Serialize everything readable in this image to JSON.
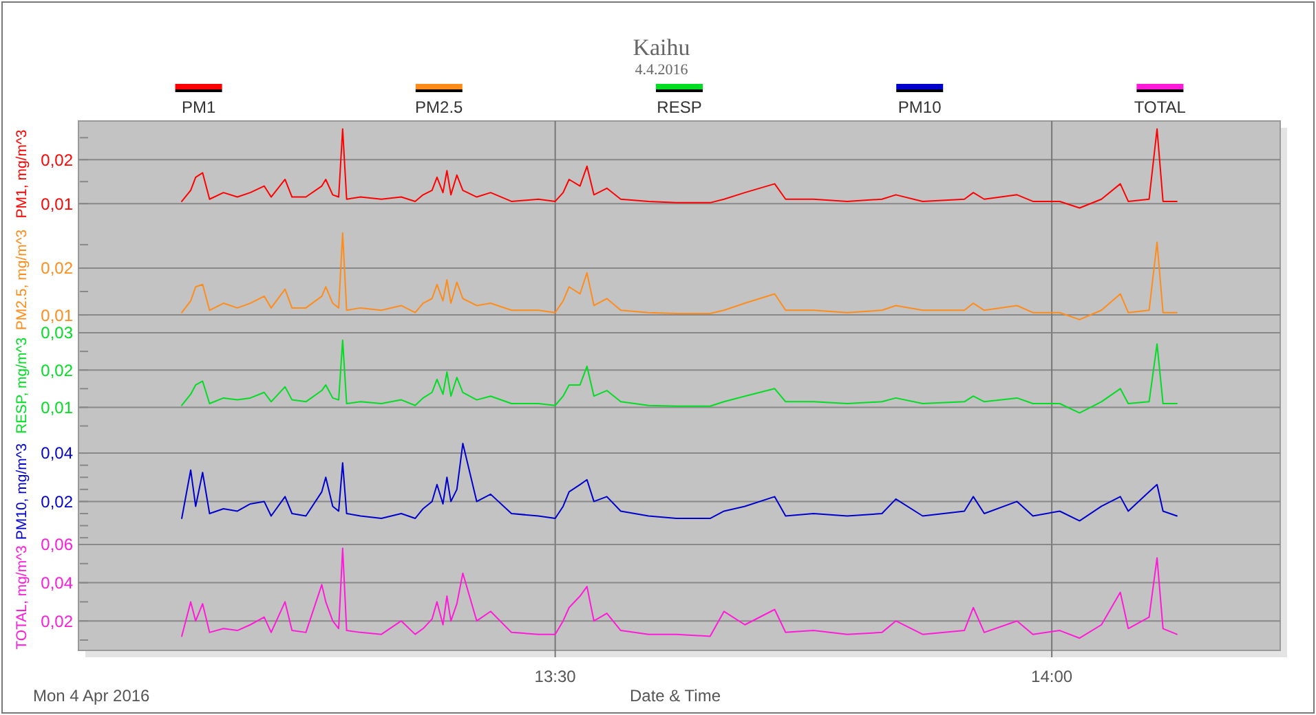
{
  "chart_data": [
    {
      "type": "line",
      "title": "Kaihu",
      "subtitle": "4.4.2016",
      "ylabel": "PM1, mg/m^3",
      "legend": "top",
      "grid": true,
      "tick_labels": "y",
      "xlim": [
        13.02,
        14.23
      ],
      "ylim": [
        0.0047,
        0.0288
      ],
      "yticks": [
        {
          "value": 0.01,
          "label": "0,01"
        },
        {
          "value": 0.015,
          "label": null
        },
        {
          "value": 0.02,
          "label": "0,02"
        },
        {
          "value": 0.025,
          "label": null
        }
      ],
      "series": [
        {
          "name": "PM1",
          "color": "#ff0000",
          "x": [
            13.124,
            13.133,
            13.138,
            13.145,
            13.152,
            13.166,
            13.18,
            13.193,
            13.207,
            13.214,
            13.228,
            13.235,
            13.249,
            13.265,
            13.269,
            13.276,
            13.282,
            13.286,
            13.29,
            13.304,
            13.325,
            13.345,
            13.359,
            13.367,
            13.376,
            13.381,
            13.387,
            13.391,
            13.395,
            13.401,
            13.407,
            13.421,
            13.435,
            13.456,
            13.483,
            13.5,
            13.508,
            13.514,
            13.525,
            13.532,
            13.539,
            13.552,
            13.566,
            13.594,
            13.622,
            13.656,
            13.67,
            13.691,
            13.721,
            13.732,
            13.76,
            13.794,
            13.829,
            13.843,
            13.87,
            13.912,
            13.921,
            13.932,
            13.965,
            13.981,
            14.008,
            14.028,
            14.05,
            14.069,
            14.077,
            14.098,
            14.106,
            14.112,
            14.126
          ],
          "values": [
            0.0105,
            0.013,
            0.016,
            0.017,
            0.011,
            0.0125,
            0.0115,
            0.0125,
            0.014,
            0.0115,
            0.0155,
            0.0115,
            0.0115,
            0.014,
            0.0155,
            0.012,
            0.0115,
            0.027,
            0.011,
            0.0115,
            0.011,
            0.0115,
            0.0105,
            0.012,
            0.013,
            0.016,
            0.0125,
            0.0175,
            0.012,
            0.0165,
            0.013,
            0.0115,
            0.0125,
            0.0105,
            0.011,
            0.0105,
            0.0125,
            0.0155,
            0.014,
            0.0185,
            0.012,
            0.0135,
            0.011,
            0.0105,
            0.0102,
            0.0102,
            0.011,
            0.0125,
            0.0145,
            0.011,
            0.011,
            0.0105,
            0.011,
            0.012,
            0.0105,
            0.011,
            0.0125,
            0.011,
            0.012,
            0.0105,
            0.0105,
            0.009,
            0.011,
            0.0145,
            0.0105,
            0.011,
            0.027,
            0.0105,
            0.0105
          ]
        }
      ]
    },
    {
      "type": "line",
      "ylabel": "PM2.5, mg/m^3",
      "legend": "top",
      "grid": true,
      "tick_labels": "y",
      "xlim": [
        13.02,
        14.23
      ],
      "ylim": [
        0.0062,
        0.0288
      ],
      "yticks": [
        {
          "value": 0.01,
          "label": "0,01"
        },
        {
          "value": 0.015,
          "label": null
        },
        {
          "value": 0.02,
          "label": "0,02"
        },
        {
          "value": 0.025,
          "label": null
        }
      ],
      "series": [
        {
          "name": "PM2.5",
          "color": "#ff8c1a",
          "x": [
            13.124,
            13.133,
            13.138,
            13.145,
            13.152,
            13.166,
            13.18,
            13.193,
            13.207,
            13.214,
            13.228,
            13.235,
            13.249,
            13.265,
            13.269,
            13.276,
            13.282,
            13.286,
            13.29,
            13.304,
            13.325,
            13.345,
            13.359,
            13.367,
            13.376,
            13.381,
            13.387,
            13.391,
            13.395,
            13.401,
            13.407,
            13.421,
            13.435,
            13.456,
            13.483,
            13.5,
            13.508,
            13.514,
            13.525,
            13.532,
            13.539,
            13.552,
            13.566,
            13.594,
            13.622,
            13.656,
            13.67,
            13.691,
            13.721,
            13.732,
            13.76,
            13.794,
            13.829,
            13.843,
            13.87,
            13.912,
            13.921,
            13.932,
            13.965,
            13.981,
            14.008,
            14.028,
            14.05,
            14.069,
            14.077,
            14.098,
            14.106,
            14.112,
            14.126
          ],
          "values": [
            0.0105,
            0.013,
            0.016,
            0.0165,
            0.011,
            0.0125,
            0.0115,
            0.0125,
            0.014,
            0.0115,
            0.0155,
            0.0115,
            0.0115,
            0.014,
            0.016,
            0.0125,
            0.0115,
            0.0275,
            0.011,
            0.0115,
            0.011,
            0.012,
            0.0105,
            0.0125,
            0.0135,
            0.0165,
            0.013,
            0.0175,
            0.0125,
            0.017,
            0.0135,
            0.012,
            0.0125,
            0.011,
            0.011,
            0.0105,
            0.013,
            0.016,
            0.0145,
            0.019,
            0.012,
            0.0135,
            0.011,
            0.0105,
            0.0103,
            0.0103,
            0.011,
            0.0125,
            0.0145,
            0.011,
            0.011,
            0.0105,
            0.011,
            0.012,
            0.011,
            0.011,
            0.0125,
            0.011,
            0.012,
            0.0105,
            0.0105,
            0.009,
            0.011,
            0.0145,
            0.0105,
            0.011,
            0.0255,
            0.0105,
            0.0105
          ]
        }
      ]
    },
    {
      "type": "line",
      "ylabel": "RESP, mg/m^3",
      "legend": "top",
      "grid": true,
      "tick_labels": "y",
      "xlim": [
        13.02,
        14.23
      ],
      "ylim": [
        0.0016,
        0.03
      ],
      "yticks": [
        {
          "value": 0.005,
          "label": null
        },
        {
          "value": 0.01,
          "label": "0,01"
        },
        {
          "value": 0.015,
          "label": null
        },
        {
          "value": 0.02,
          "label": "0,02"
        },
        {
          "value": 0.025,
          "label": null
        },
        {
          "value": 0.03,
          "label": "0,03"
        }
      ],
      "series": [
        {
          "name": "RESP",
          "color": "#00dd22",
          "x": [
            13.124,
            13.133,
            13.138,
            13.145,
            13.152,
            13.166,
            13.18,
            13.193,
            13.207,
            13.214,
            13.228,
            13.235,
            13.249,
            13.265,
            13.269,
            13.276,
            13.282,
            13.286,
            13.29,
            13.304,
            13.325,
            13.345,
            13.359,
            13.367,
            13.376,
            13.381,
            13.387,
            13.391,
            13.395,
            13.401,
            13.407,
            13.421,
            13.435,
            13.456,
            13.483,
            13.5,
            13.508,
            13.514,
            13.525,
            13.532,
            13.539,
            13.552,
            13.566,
            13.594,
            13.622,
            13.656,
            13.67,
            13.691,
            13.721,
            13.732,
            13.76,
            13.794,
            13.829,
            13.843,
            13.87,
            13.912,
            13.921,
            13.932,
            13.965,
            13.981,
            14.008,
            14.028,
            14.05,
            14.069,
            14.077,
            14.098,
            14.106,
            14.112,
            14.126
          ],
          "values": [
            0.0105,
            0.0135,
            0.016,
            0.017,
            0.011,
            0.0125,
            0.012,
            0.0125,
            0.014,
            0.0115,
            0.0155,
            0.012,
            0.0115,
            0.0145,
            0.016,
            0.0125,
            0.012,
            0.028,
            0.011,
            0.0115,
            0.011,
            0.012,
            0.0105,
            0.0125,
            0.014,
            0.0175,
            0.0135,
            0.0195,
            0.013,
            0.018,
            0.014,
            0.012,
            0.013,
            0.011,
            0.011,
            0.0105,
            0.013,
            0.016,
            0.016,
            0.021,
            0.013,
            0.0145,
            0.0115,
            0.0105,
            0.0103,
            0.0103,
            0.0115,
            0.013,
            0.015,
            0.0115,
            0.0115,
            0.011,
            0.0115,
            0.0125,
            0.011,
            0.0115,
            0.013,
            0.0115,
            0.0125,
            0.011,
            0.011,
            0.0085,
            0.0115,
            0.015,
            0.011,
            0.0115,
            0.027,
            0.011,
            0.011
          ]
        }
      ]
    },
    {
      "type": "line",
      "ylabel": "PM10, mg/m^3",
      "legend": "top",
      "grid": true,
      "tick_labels": "y",
      "xlim": [
        13.02,
        14.23
      ],
      "ylim": [
        0.0022,
        0.046
      ],
      "yticks": [
        {
          "value": 0.005,
          "label": null
        },
        {
          "value": 0.01,
          "label": null
        },
        {
          "value": 0.015,
          "label": null
        },
        {
          "value": 0.02,
          "label": "0,02"
        },
        {
          "value": 0.025,
          "label": null
        },
        {
          "value": 0.03,
          "label": null
        },
        {
          "value": 0.035,
          "label": null
        },
        {
          "value": 0.04,
          "label": "0,04"
        }
      ],
      "series": [
        {
          "name": "PM10",
          "color": "#0000cc",
          "x": [
            13.124,
            13.133,
            13.138,
            13.145,
            13.152,
            13.166,
            13.18,
            13.193,
            13.207,
            13.214,
            13.228,
            13.235,
            13.249,
            13.265,
            13.269,
            13.276,
            13.282,
            13.286,
            13.29,
            13.304,
            13.325,
            13.345,
            13.359,
            13.367,
            13.376,
            13.381,
            13.387,
            13.391,
            13.395,
            13.401,
            13.407,
            13.421,
            13.435,
            13.456,
            13.483,
            13.5,
            13.508,
            13.514,
            13.525,
            13.532,
            13.539,
            13.552,
            13.566,
            13.594,
            13.622,
            13.656,
            13.67,
            13.691,
            13.721,
            13.732,
            13.76,
            13.794,
            13.829,
            13.843,
            13.87,
            13.912,
            13.921,
            13.932,
            13.965,
            13.981,
            14.008,
            14.028,
            14.05,
            14.069,
            14.077,
            14.098,
            14.106,
            14.112,
            14.126
          ],
          "values": [
            0.013,
            0.033,
            0.018,
            0.032,
            0.015,
            0.017,
            0.016,
            0.019,
            0.02,
            0.014,
            0.022,
            0.015,
            0.014,
            0.024,
            0.03,
            0.018,
            0.016,
            0.036,
            0.015,
            0.014,
            0.013,
            0.015,
            0.013,
            0.017,
            0.02,
            0.027,
            0.019,
            0.03,
            0.02,
            0.025,
            0.044,
            0.02,
            0.023,
            0.015,
            0.014,
            0.013,
            0.018,
            0.024,
            0.027,
            0.029,
            0.02,
            0.022,
            0.016,
            0.014,
            0.013,
            0.013,
            0.016,
            0.018,
            0.022,
            0.014,
            0.015,
            0.014,
            0.015,
            0.021,
            0.014,
            0.016,
            0.022,
            0.015,
            0.02,
            0.014,
            0.016,
            0.012,
            0.018,
            0.022,
            0.016,
            0.024,
            0.027,
            0.016,
            0.014
          ]
        }
      ]
    },
    {
      "type": "line",
      "ylabel": "TOTAL, mg/m^3",
      "xlabel": "Date & Time",
      "annotations": [
        "Mon 4 Apr 2016"
      ],
      "legend": "top",
      "grid": true,
      "xlim": [
        13.02,
        14.23
      ],
      "xticks": [
        {
          "value": 13.5,
          "label": "13:30"
        },
        {
          "value": 14,
          "label": "14:00"
        }
      ],
      "ylim": [
        0.0046,
        0.06
      ],
      "yticks": [
        {
          "value": 0.01,
          "label": null
        },
        {
          "value": 0.02,
          "label": "0,02"
        },
        {
          "value": 0.03,
          "label": null
        },
        {
          "value": 0.04,
          "label": "0,04"
        },
        {
          "value": 0.05,
          "label": null
        },
        {
          "value": 0.06,
          "label": "0,06"
        }
      ],
      "series": [
        {
          "name": "TOTAL",
          "color": "#ff1ad9",
          "x": [
            13.124,
            13.133,
            13.138,
            13.145,
            13.152,
            13.166,
            13.18,
            13.193,
            13.207,
            13.214,
            13.228,
            13.235,
            13.249,
            13.265,
            13.269,
            13.276,
            13.282,
            13.286,
            13.29,
            13.304,
            13.325,
            13.345,
            13.359,
            13.367,
            13.376,
            13.381,
            13.387,
            13.391,
            13.395,
            13.401,
            13.407,
            13.421,
            13.435,
            13.456,
            13.483,
            13.5,
            13.508,
            13.514,
            13.525,
            13.532,
            13.539,
            13.552,
            13.566,
            13.594,
            13.622,
            13.656,
            13.67,
            13.691,
            13.721,
            13.732,
            13.76,
            13.794,
            13.829,
            13.843,
            13.87,
            13.912,
            13.921,
            13.932,
            13.965,
            13.981,
            14.008,
            14.028,
            14.05,
            14.069,
            14.077,
            14.098,
            14.106,
            14.112,
            14.126
          ],
          "values": [
            0.012,
            0.03,
            0.02,
            0.029,
            0.014,
            0.016,
            0.015,
            0.018,
            0.022,
            0.014,
            0.03,
            0.015,
            0.014,
            0.039,
            0.03,
            0.02,
            0.016,
            0.058,
            0.015,
            0.014,
            0.013,
            0.02,
            0.013,
            0.016,
            0.021,
            0.03,
            0.018,
            0.033,
            0.02,
            0.029,
            0.045,
            0.02,
            0.025,
            0.014,
            0.013,
            0.013,
            0.02,
            0.027,
            0.033,
            0.038,
            0.02,
            0.024,
            0.015,
            0.013,
            0.013,
            0.012,
            0.025,
            0.018,
            0.026,
            0.014,
            0.015,
            0.013,
            0.014,
            0.02,
            0.013,
            0.015,
            0.027,
            0.014,
            0.02,
            0.013,
            0.015,
            0.011,
            0.018,
            0.035,
            0.016,
            0.022,
            0.053,
            0.016,
            0.013
          ]
        }
      ]
    }
  ]
}
